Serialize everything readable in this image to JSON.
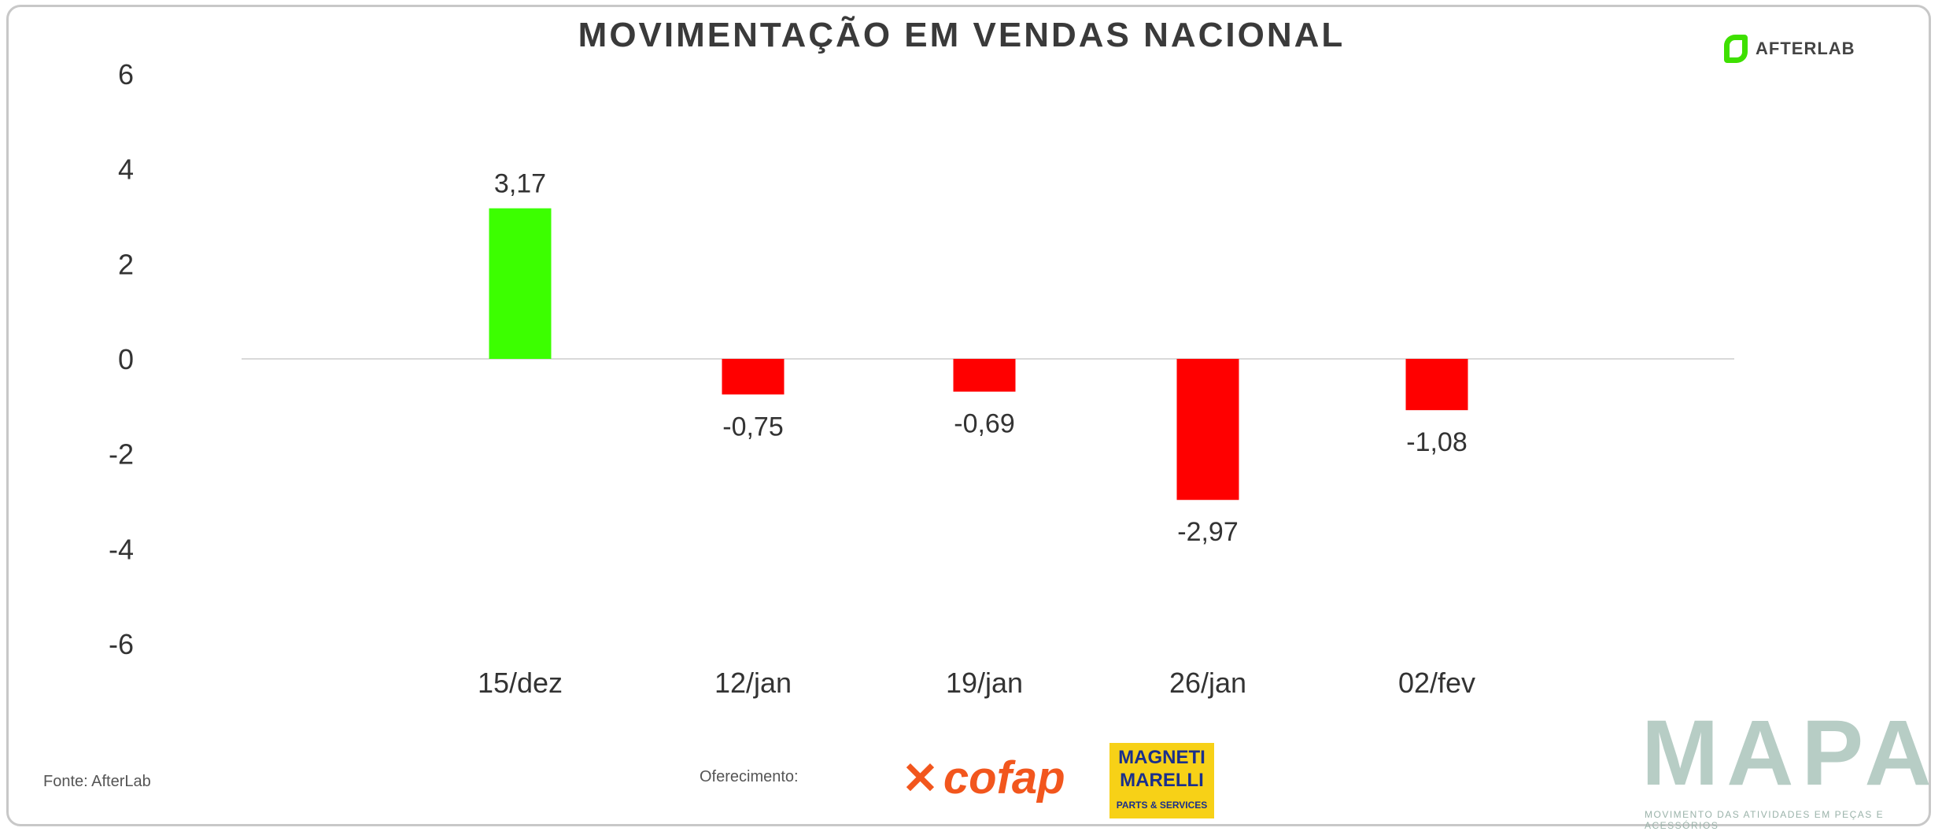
{
  "brand": {
    "afterlab": "AFTERLAB",
    "mapa": "MAPA",
    "mapa_tagline": "MOVIMENTO DAS ATIVIDADES EM PEÇAS E ACESSÓRIOS",
    "cofap": "cofap",
    "magneti_line1": "MAGNETI",
    "magneti_line2": "MARELLI",
    "magneti_sub": "PARTS & SERVICES"
  },
  "footer": {
    "source": "Fonte: AfterLab",
    "sponsor_label": "Oferecimento:"
  },
  "colors": {
    "positive": "#3cff00",
    "negative": "#ff0000",
    "axis_text": "#333333",
    "zero_line": "#d9d9d9"
  },
  "chart_data": {
    "type": "bar",
    "title": "MOVIMENTAÇÃO EM VENDAS NACIONAL",
    "categories": [
      "15/dez",
      "12/jan",
      "19/jan",
      "26/jan",
      "02/fev"
    ],
    "values": [
      3.17,
      -0.75,
      -0.69,
      -2.97,
      -1.08
    ],
    "data_labels": [
      "3,17",
      "-0,75",
      "-0,69",
      "-2,97",
      "-1,08"
    ],
    "ylim": [
      -6,
      6
    ],
    "yticks": [
      "-6",
      "-4",
      "-2",
      "0",
      "2",
      "4",
      "6"
    ],
    "xlabel": "",
    "ylabel": "",
    "grid": false,
    "legend": "none"
  }
}
